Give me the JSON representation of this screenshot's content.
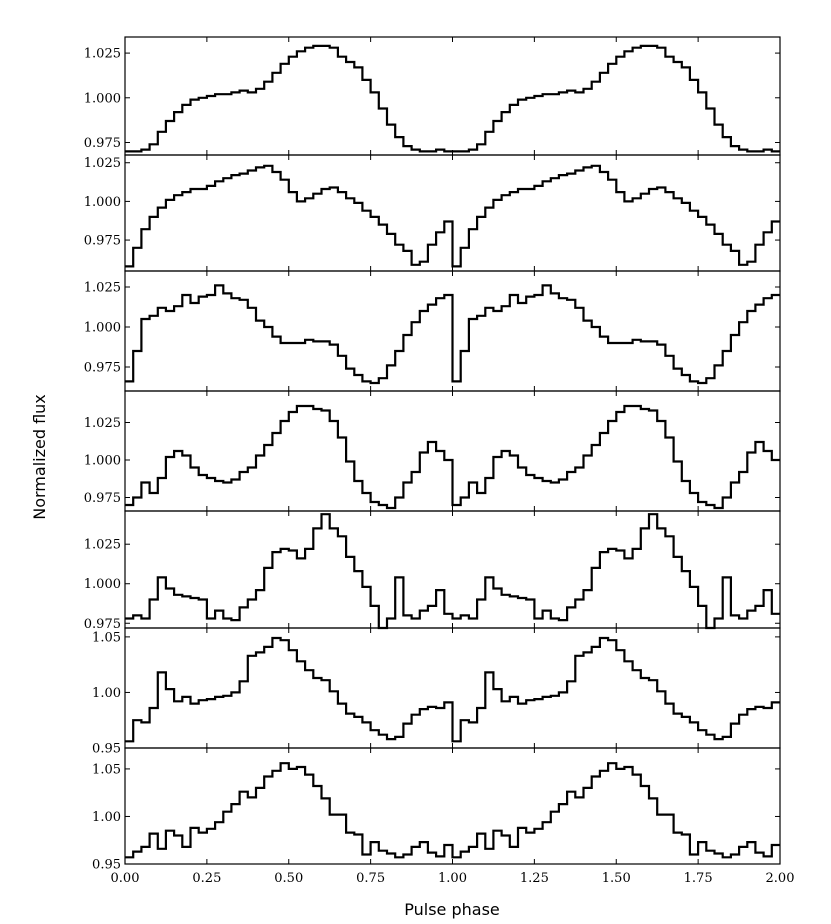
{
  "chart_data": {
    "type": "line",
    "xlabel": "Pulse phase",
    "ylabel": "Normalized flux",
    "xlim": [
      0,
      2
    ],
    "x_ticks": [
      "0.00",
      "0.25",
      "0.50",
      "0.75",
      "1.00",
      "1.25",
      "1.50",
      "1.75",
      "2.00"
    ],
    "step": true,
    "bins_per_cycle": 40,
    "panels": [
      {
        "ylim": [
          0.968,
          1.034
        ],
        "y_ticks": [
          {
            "v": 0.975,
            "label": "0.975"
          },
          {
            "v": 1.0,
            "label": "1.000"
          },
          {
            "v": 1.025,
            "label": "1.025"
          }
        ],
        "values": [
          0.97,
          0.97,
          0.971,
          0.974,
          0.981,
          0.987,
          0.992,
          0.996,
          0.999,
          1.0,
          1.001,
          1.002,
          1.002,
          1.003,
          1.004,
          1.003,
          1.005,
          1.009,
          1.014,
          1.019,
          1.023,
          1.026,
          1.028,
          1.029,
          1.029,
          1.028,
          1.023,
          1.02,
          1.017,
          1.01,
          1.003,
          0.994,
          0.985,
          0.978,
          0.973,
          0.971,
          0.97,
          0.97,
          0.971,
          0.97
        ]
      },
      {
        "ylim": [
          0.955,
          1.03
        ],
        "y_ticks": [
          {
            "v": 0.975,
            "label": "0.975"
          },
          {
            "v": 1.0,
            "label": "1.000"
          },
          {
            "v": 1.025,
            "label": "1.025"
          }
        ],
        "values": [
          0.958,
          0.97,
          0.982,
          0.99,
          0.996,
          1.001,
          1.004,
          1.006,
          1.008,
          1.008,
          1.01,
          1.013,
          1.015,
          1.017,
          1.018,
          1.02,
          1.022,
          1.023,
          1.019,
          1.014,
          1.006,
          1.0,
          1.002,
          1.005,
          1.008,
          1.009,
          1.006,
          1.002,
          0.999,
          0.994,
          0.99,
          0.985,
          0.979,
          0.972,
          0.968,
          0.959,
          0.961,
          0.972,
          0.98,
          0.987
        ]
      },
      {
        "ylim": [
          0.96,
          1.035
        ],
        "y_ticks": [
          {
            "v": 0.975,
            "label": "0.975"
          },
          {
            "v": 1.0,
            "label": "1.000"
          },
          {
            "v": 1.025,
            "label": "1.025"
          }
        ],
        "values": [
          0.966,
          0.985,
          1.005,
          1.007,
          1.012,
          1.01,
          1.013,
          1.02,
          1.015,
          1.019,
          1.02,
          1.026,
          1.021,
          1.018,
          1.017,
          1.012,
          1.004,
          1.0,
          0.994,
          0.99,
          0.99,
          0.99,
          0.992,
          0.991,
          0.991,
          0.989,
          0.982,
          0.974,
          0.97,
          0.966,
          0.965,
          0.968,
          0.976,
          0.985,
          0.995,
          1.003,
          1.01,
          1.014,
          1.018,
          1.02
        ]
      },
      {
        "ylim": [
          0.966,
          1.046
        ],
        "y_ticks": [
          {
            "v": 0.975,
            "label": "0.975"
          },
          {
            "v": 1.0,
            "label": "1.000"
          },
          {
            "v": 1.025,
            "label": "1.025"
          }
        ],
        "values": [
          0.97,
          0.975,
          0.985,
          0.978,
          0.988,
          1.002,
          1.006,
          1.003,
          0.995,
          0.99,
          0.988,
          0.986,
          0.985,
          0.987,
          0.992,
          0.995,
          1.003,
          1.01,
          1.018,
          1.026,
          1.032,
          1.036,
          1.036,
          1.034,
          1.033,
          1.026,
          1.015,
          0.999,
          0.986,
          0.978,
          0.972,
          0.97,
          0.968,
          0.975,
          0.985,
          0.992,
          1.005,
          1.012,
          1.006,
          1.0
        ]
      },
      {
        "ylim": [
          0.972,
          1.046
        ],
        "y_ticks": [
          {
            "v": 0.975,
            "label": "0.975"
          },
          {
            "v": 1.0,
            "label": "1.000"
          },
          {
            "v": 1.025,
            "label": "1.025"
          }
        ],
        "values": [
          0.978,
          0.98,
          0.978,
          0.99,
          1.004,
          0.997,
          0.993,
          0.992,
          0.991,
          0.99,
          0.978,
          0.983,
          0.978,
          0.977,
          0.985,
          0.99,
          0.996,
          1.01,
          1.02,
          1.022,
          1.021,
          1.016,
          1.022,
          1.035,
          1.044,
          1.035,
          1.03,
          1.017,
          1.008,
          0.998,
          0.986,
          0.972,
          0.978,
          1.004,
          0.98,
          0.978,
          0.983,
          0.986,
          0.996,
          0.981
        ]
      },
      {
        "ylim": [
          0.95,
          1.058
        ],
        "y_ticks": [
          {
            "v": 0.95,
            "label": "0.95"
          },
          {
            "v": 1.0,
            "label": "1.00"
          },
          {
            "v": 1.05,
            "label": "1.05"
          }
        ],
        "values": [
          0.956,
          0.975,
          0.973,
          0.986,
          1.018,
          1.003,
          0.992,
          0.996,
          0.99,
          0.993,
          0.994,
          0.996,
          0.997,
          1.0,
          1.01,
          1.033,
          1.036,
          1.041,
          1.049,
          1.047,
          1.038,
          1.028,
          1.02,
          1.013,
          1.011,
          1.001,
          0.99,
          0.981,
          0.978,
          0.973,
          0.966,
          0.962,
          0.958,
          0.96,
          0.972,
          0.98,
          0.985,
          0.987,
          0.986,
          0.991
        ]
      },
      {
        "ylim": [
          0.95,
          1.072
        ],
        "y_ticks": [
          {
            "v": 0.95,
            "label": "0.95"
          },
          {
            "v": 1.0,
            "label": "1.00"
          },
          {
            "v": 1.05,
            "label": "1.05"
          }
        ],
        "values": [
          0.957,
          0.963,
          0.968,
          0.982,
          0.966,
          0.985,
          0.98,
          0.968,
          0.988,
          0.983,
          0.987,
          0.994,
          1.005,
          1.013,
          1.026,
          1.02,
          1.03,
          1.042,
          1.048,
          1.056,
          1.05,
          1.052,
          1.044,
          1.032,
          1.019,
          1.002,
          1.002,
          0.983,
          0.981,
          0.96,
          0.973,
          0.964,
          0.961,
          0.957,
          0.96,
          0.968,
          0.973,
          0.962,
          0.958,
          0.97
        ]
      }
    ]
  }
}
